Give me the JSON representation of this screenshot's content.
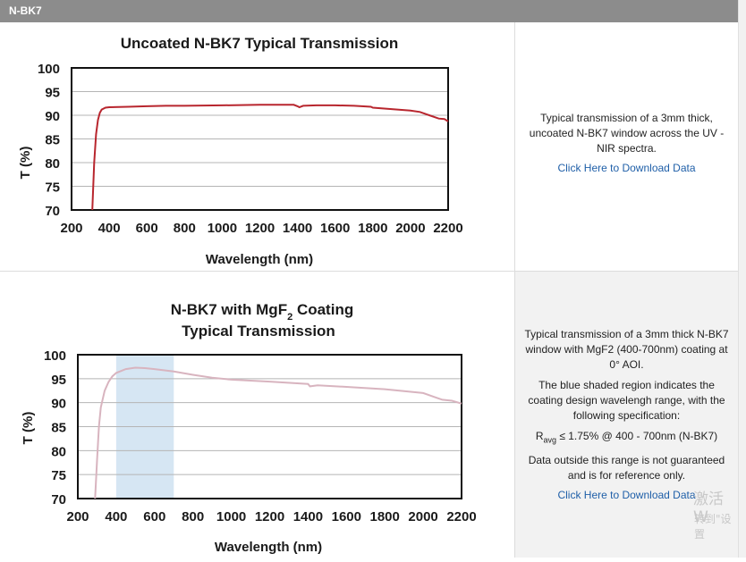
{
  "header": {
    "title": "N-BK7"
  },
  "charts": [
    {
      "title_lines": [
        "Uncoated N-BK7 Typical Transmission"
      ],
      "xlabel": "Wavelength (nm)",
      "ylabel": "T (%)",
      "description": [
        "Typical transmission of a 3mm thick, uncoated N-BK7 window across the UV - NIR spectra."
      ],
      "link": "Click Here to Download Data"
    },
    {
      "title_line1_a": "N-BK7 with MgF",
      "title_line1_sub": "2",
      "title_line1_b": " Coating",
      "title_line2": "Typical Transmission",
      "xlabel": "Wavelength (nm)",
      "ylabel": "T (%)",
      "description": [
        "Typical transmission of a 3mm thick N-BK7 window with MgF2 (400-700nm) coating at 0° AOI.",
        "The blue shaded region indicates the coating design wavelengh range, with the following specification:"
      ],
      "spec_r": "R",
      "spec_sub": "avg",
      "spec_rest": " ≤ 1.75% @ 400 - 700nm (N-BK7)",
      "note": "Data outside this range is not guaranteed and is for reference only.",
      "link": "Click Here to Download Data"
    }
  ],
  "watermark": {
    "line1": "激活 W",
    "line2": "转到\"设置"
  },
  "chart_data": [
    {
      "type": "line",
      "title": "Uncoated N-BK7 Typical Transmission",
      "xlabel": "Wavelength (nm)",
      "ylabel": "T (%)",
      "xlim": [
        200,
        2200
      ],
      "ylim": [
        70,
        100
      ],
      "xticks": [
        200,
        400,
        600,
        800,
        1000,
        1200,
        1400,
        1600,
        1800,
        2000,
        2200
      ],
      "yticks": [
        70,
        75,
        80,
        85,
        90,
        95,
        100
      ],
      "grid": "horizontal",
      "color": "#b8262e",
      "series": [
        {
          "x": [
            310,
            320,
            330,
            340,
            350,
            360,
            380,
            400,
            500,
            600,
            700,
            800,
            1000,
            1200,
            1300,
            1380,
            1400,
            1410,
            1430,
            1500,
            1600,
            1700,
            1790,
            1800,
            1900,
            2000,
            2050,
            2100,
            2150,
            2180,
            2200
          ],
          "y": [
            70,
            80,
            86,
            89,
            90.5,
            91.2,
            91.6,
            91.7,
            91.8,
            91.9,
            92.0,
            92.0,
            92.1,
            92.2,
            92.2,
            92.2,
            91.9,
            91.7,
            92.0,
            92.1,
            92.1,
            92.0,
            91.8,
            91.6,
            91.3,
            91.0,
            90.7,
            90.0,
            89.3,
            89.2,
            88.7
          ]
        }
      ]
    },
    {
      "type": "line",
      "title": "N-BK7 with MgF2 Coating Typical Transmission",
      "xlabel": "Wavelength (nm)",
      "ylabel": "T (%)",
      "xlim": [
        200,
        2200
      ],
      "ylim": [
        70,
        100
      ],
      "xticks": [
        200,
        400,
        600,
        800,
        1000,
        1200,
        1400,
        1600,
        1800,
        2000,
        2200
      ],
      "yticks": [
        70,
        75,
        80,
        85,
        90,
        95,
        100
      ],
      "grid": "horizontal",
      "color": "#d8b4bf",
      "shaded_region": {
        "x0": 400,
        "x1": 700,
        "color": "#d6e6f3"
      },
      "series": [
        {
          "x": [
            290,
            300,
            310,
            320,
            340,
            360,
            380,
            400,
            450,
            500,
            550,
            600,
            700,
            800,
            900,
            1000,
            1200,
            1400,
            1410,
            1450,
            1600,
            1800,
            2000,
            2050,
            2100,
            2150,
            2200
          ],
          "y": [
            70,
            78,
            85,
            89,
            92.5,
            94.3,
            95.5,
            96.2,
            97.0,
            97.3,
            97.2,
            97.0,
            96.5,
            95.8,
            95.2,
            94.8,
            94.4,
            93.9,
            93.4,
            93.6,
            93.3,
            92.8,
            92.0,
            91.3,
            90.6,
            90.4,
            89.8
          ]
        }
      ]
    }
  ]
}
